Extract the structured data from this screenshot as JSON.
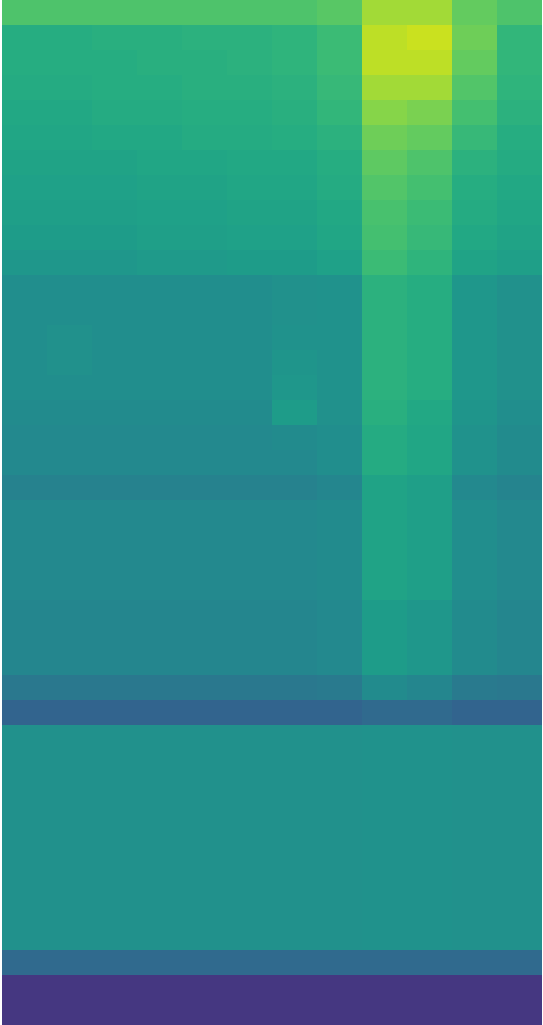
{
  "chart_data": {
    "type": "heatmap",
    "tick_labels": false,
    "color": "viridis",
    "color_range": [
      0,
      1
    ],
    "cells": [
      [
        0.72,
        0.72,
        0.72,
        0.72,
        0.72,
        0.72,
        0.72,
        0.74,
        0.86,
        0.86,
        0.76,
        0.72
      ],
      [
        0.62,
        0.62,
        0.63,
        0.63,
        0.64,
        0.64,
        0.65,
        0.68,
        0.9,
        0.92,
        0.78,
        0.66
      ],
      [
        0.62,
        0.62,
        0.62,
        0.63,
        0.63,
        0.64,
        0.65,
        0.68,
        0.9,
        0.9,
        0.76,
        0.66
      ],
      [
        0.61,
        0.61,
        0.62,
        0.62,
        0.63,
        0.63,
        0.64,
        0.67,
        0.86,
        0.86,
        0.73,
        0.65
      ],
      [
        0.6,
        0.6,
        0.61,
        0.61,
        0.62,
        0.62,
        0.63,
        0.66,
        0.82,
        0.8,
        0.7,
        0.64
      ],
      [
        0.59,
        0.59,
        0.6,
        0.6,
        0.61,
        0.61,
        0.62,
        0.64,
        0.78,
        0.76,
        0.67,
        0.62
      ],
      [
        0.58,
        0.58,
        0.58,
        0.59,
        0.59,
        0.6,
        0.6,
        0.62,
        0.75,
        0.72,
        0.64,
        0.61
      ],
      [
        0.57,
        0.57,
        0.57,
        0.58,
        0.58,
        0.59,
        0.59,
        0.61,
        0.73,
        0.7,
        0.62,
        0.6
      ],
      [
        0.56,
        0.56,
        0.56,
        0.57,
        0.57,
        0.58,
        0.58,
        0.6,
        0.71,
        0.68,
        0.61,
        0.59
      ],
      [
        0.55,
        0.55,
        0.55,
        0.56,
        0.56,
        0.57,
        0.57,
        0.59,
        0.7,
        0.67,
        0.6,
        0.58
      ],
      [
        0.53,
        0.53,
        0.53,
        0.54,
        0.54,
        0.55,
        0.55,
        0.57,
        0.68,
        0.65,
        0.58,
        0.56
      ],
      [
        0.49,
        0.49,
        0.49,
        0.49,
        0.49,
        0.49,
        0.5,
        0.51,
        0.64,
        0.62,
        0.53,
        0.5
      ],
      [
        0.49,
        0.49,
        0.49,
        0.49,
        0.49,
        0.49,
        0.5,
        0.51,
        0.64,
        0.62,
        0.53,
        0.5
      ],
      [
        0.49,
        0.5,
        0.49,
        0.49,
        0.49,
        0.49,
        0.51,
        0.51,
        0.64,
        0.62,
        0.53,
        0.5
      ],
      [
        0.49,
        0.5,
        0.49,
        0.49,
        0.49,
        0.49,
        0.52,
        0.51,
        0.64,
        0.62,
        0.53,
        0.5
      ],
      [
        0.49,
        0.49,
        0.49,
        0.49,
        0.49,
        0.49,
        0.53,
        0.51,
        0.64,
        0.62,
        0.53,
        0.5
      ],
      [
        0.48,
        0.48,
        0.48,
        0.48,
        0.48,
        0.48,
        0.55,
        0.5,
        0.63,
        0.6,
        0.52,
        0.49
      ],
      [
        0.47,
        0.47,
        0.47,
        0.47,
        0.47,
        0.47,
        0.48,
        0.49,
        0.61,
        0.59,
        0.51,
        0.48
      ],
      [
        0.47,
        0.47,
        0.47,
        0.47,
        0.47,
        0.47,
        0.47,
        0.49,
        0.61,
        0.59,
        0.51,
        0.48
      ],
      [
        0.44,
        0.44,
        0.44,
        0.44,
        0.44,
        0.44,
        0.44,
        0.46,
        0.58,
        0.56,
        0.47,
        0.45
      ],
      [
        0.47,
        0.47,
        0.47,
        0.47,
        0.47,
        0.47,
        0.47,
        0.48,
        0.58,
        0.56,
        0.49,
        0.47
      ],
      [
        0.47,
        0.47,
        0.47,
        0.47,
        0.47,
        0.47,
        0.47,
        0.48,
        0.58,
        0.56,
        0.49,
        0.47
      ],
      [
        0.47,
        0.47,
        0.47,
        0.47,
        0.47,
        0.47,
        0.47,
        0.48,
        0.58,
        0.56,
        0.49,
        0.47
      ],
      [
        0.47,
        0.47,
        0.47,
        0.47,
        0.47,
        0.47,
        0.47,
        0.48,
        0.58,
        0.56,
        0.49,
        0.47
      ],
      [
        0.46,
        0.46,
        0.46,
        0.46,
        0.46,
        0.46,
        0.46,
        0.47,
        0.55,
        0.53,
        0.48,
        0.46
      ],
      [
        0.46,
        0.46,
        0.46,
        0.46,
        0.46,
        0.46,
        0.46,
        0.47,
        0.55,
        0.53,
        0.48,
        0.46
      ],
      [
        0.46,
        0.46,
        0.46,
        0.46,
        0.46,
        0.46,
        0.46,
        0.47,
        0.55,
        0.53,
        0.48,
        0.46
      ],
      [
        0.4,
        0.4,
        0.4,
        0.4,
        0.4,
        0.4,
        0.4,
        0.41,
        0.48,
        0.46,
        0.41,
        0.4
      ],
      [
        0.32,
        0.32,
        0.32,
        0.32,
        0.32,
        0.32,
        0.32,
        0.32,
        0.34,
        0.34,
        0.32,
        0.32
      ],
      [
        0.5,
        0.5,
        0.5,
        0.5,
        0.5,
        0.5,
        0.5,
        0.5,
        0.51,
        0.51,
        0.5,
        0.5
      ],
      [
        0.5,
        0.5,
        0.5,
        0.5,
        0.5,
        0.5,
        0.5,
        0.5,
        0.51,
        0.51,
        0.5,
        0.5
      ],
      [
        0.5,
        0.5,
        0.5,
        0.5,
        0.5,
        0.5,
        0.5,
        0.5,
        0.51,
        0.51,
        0.5,
        0.5
      ],
      [
        0.5,
        0.5,
        0.5,
        0.5,
        0.5,
        0.5,
        0.5,
        0.5,
        0.51,
        0.51,
        0.5,
        0.5
      ],
      [
        0.5,
        0.5,
        0.5,
        0.5,
        0.5,
        0.5,
        0.5,
        0.5,
        0.51,
        0.51,
        0.5,
        0.5
      ],
      [
        0.5,
        0.5,
        0.5,
        0.5,
        0.5,
        0.5,
        0.5,
        0.5,
        0.51,
        0.51,
        0.5,
        0.5
      ],
      [
        0.5,
        0.5,
        0.5,
        0.5,
        0.5,
        0.5,
        0.5,
        0.5,
        0.51,
        0.51,
        0.5,
        0.5
      ],
      [
        0.5,
        0.5,
        0.5,
        0.5,
        0.5,
        0.5,
        0.5,
        0.5,
        0.51,
        0.51,
        0.5,
        0.5
      ],
      [
        0.5,
        0.5,
        0.5,
        0.5,
        0.5,
        0.5,
        0.5,
        0.5,
        0.51,
        0.51,
        0.5,
        0.5
      ],
      [
        0.34,
        0.34,
        0.34,
        0.34,
        0.34,
        0.34,
        0.34,
        0.34,
        0.34,
        0.34,
        0.34,
        0.34
      ],
      [
        0.16,
        0.16,
        0.16,
        0.16,
        0.16,
        0.16,
        0.16,
        0.16,
        0.16,
        0.16,
        0.16,
        0.16
      ],
      [
        0.16,
        0.16,
        0.16,
        0.16,
        0.16,
        0.16,
        0.16,
        0.16,
        0.16,
        0.16,
        0.16,
        0.16
      ]
    ]
  }
}
